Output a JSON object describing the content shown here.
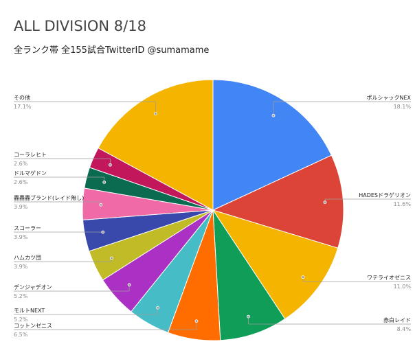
{
  "title": "ALL DIVISION 8/18",
  "subtitle": "全ランク帯 全155試合TwitterID @sumamame",
  "chart_data": {
    "type": "pie",
    "title": "ALL DIVISION 8/18",
    "subtitle": "全ランク帯 全155試合TwitterID @sumamame",
    "legend": "labels around the pie",
    "slices": [
      {
        "label": "ポルシャックNEX",
        "value": 18.1,
        "value_label": "18.1%",
        "color": "#4285f4"
      },
      {
        "label": "HADESドラゲリオン",
        "value": 11.6,
        "value_label": "11.6%",
        "color": "#db4437"
      },
      {
        "label": "ワテライオゼニス",
        "value": 11.0,
        "value_label": "11.0%",
        "color": "#f4b400"
      },
      {
        "label": "赤白レイド",
        "value": 8.4,
        "value_label": "8.4%",
        "color": "#0f9d58"
      },
      {
        "label": "コットンゼニス",
        "value": 6.5,
        "value_label": "6.5%",
        "color": "#ff6d00"
      },
      {
        "label": "モルトNEXT",
        "value": 5.2,
        "value_label": "5.2%",
        "color": "#46bdc6"
      },
      {
        "label": "デンジャデオン",
        "value": 5.2,
        "value_label": "5.2%",
        "color": "#ab30c4"
      },
      {
        "label": "ハムカツ団",
        "value": 3.9,
        "value_label": "3.9%",
        "color": "#c2bb28"
      },
      {
        "label": "スコーラー",
        "value": 3.9,
        "value_label": "3.9%",
        "color": "#3949ab"
      },
      {
        "label": "轟轟轟ブランド(レイド無し)",
        "value": 3.9,
        "value_label": "3.9%",
        "color": "#f06aa8"
      },
      {
        "label": "ドルマゲドン",
        "value": 2.6,
        "value_label": "2.6%",
        "color": "#0b6b50"
      },
      {
        "label": "コーラレヒト",
        "value": 2.6,
        "value_label": "2.6%",
        "color": "#c2185b"
      },
      {
        "label": "その他",
        "value": 17.1,
        "value_label": "17.1%",
        "color": "#f4b400"
      }
    ]
  }
}
